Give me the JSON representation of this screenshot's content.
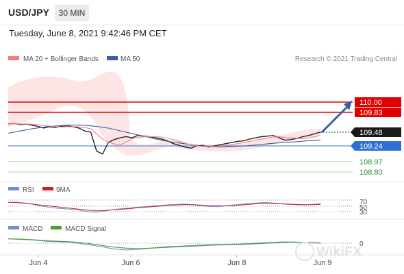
{
  "header": {
    "symbol": "USD/JPY",
    "timeframe_button": "30 MIN",
    "datetime": "Tuesday, June 8, 2021 9:42:46 PM CET"
  },
  "legend": {
    "ma20": "MA 20 + Bollinger Bands",
    "ma50": "MA 50",
    "copyright": "Research © 2021 Trading Central",
    "rsi": "RSI",
    "rsi_ma": "9MA",
    "macd": "MACD",
    "macd_signal": "MACD Signal"
  },
  "colors": {
    "ma20": "#f08080",
    "ma50": "#3a5fa0",
    "resistance": "#e00000",
    "support": "#5b8fd0",
    "support_green": "#7bc47b",
    "rsi": "#6a8fd8",
    "rsi_ma": "#cc2222",
    "macd": "#6a8fd8",
    "macd_signal": "#559933",
    "arrow": "#2f5fa8",
    "last_price_bg": "#1a1a1a"
  },
  "chart_data": [
    {
      "type": "line",
      "title": "USD/JPY 30 MIN",
      "x_labels": [
        "Jun 4",
        "Jun 6",
        "Jun 8",
        "Jun 9"
      ],
      "ylim": [
        108.75,
        110.1
      ],
      "series": [
        {
          "name": "price",
          "values": [
            109.62,
            109.63,
            109.61,
            109.62,
            109.6,
            109.58,
            109.55,
            109.57,
            109.56,
            109.58,
            109.59,
            109.57,
            109.55,
            109.5,
            109.48,
            109.15,
            109.1,
            109.3,
            109.35,
            109.38,
            109.4,
            109.38,
            109.42,
            109.41,
            109.4,
            109.38,
            109.36,
            109.33,
            109.28,
            109.25,
            109.22,
            109.2,
            109.24,
            109.25,
            109.22,
            109.24,
            109.26,
            109.28,
            109.3,
            109.32,
            109.33,
            109.36,
            109.38,
            109.4,
            109.41,
            109.42,
            109.38,
            109.34,
            109.35,
            109.37,
            109.4,
            109.42,
            109.45,
            109.48
          ]
        },
        {
          "name": "MA 50",
          "values": [
            109.46,
            109.5,
            109.54,
            109.57,
            109.59,
            109.6,
            109.6,
            109.58,
            109.55,
            109.5,
            109.45,
            109.4,
            109.35,
            109.31,
            109.28,
            109.25,
            109.23,
            109.22,
            109.23,
            109.24,
            109.26,
            109.28,
            109.3,
            109.31,
            109.33,
            109.34
          ]
        }
      ],
      "levels": [
        {
          "label": "110.00",
          "value": 110.0,
          "kind": "resistance"
        },
        {
          "label": "109.83",
          "value": 109.83,
          "kind": "resistance"
        },
        {
          "label": "109.48",
          "value": 109.48,
          "kind": "last"
        },
        {
          "label": "109.24",
          "value": 109.24,
          "kind": "support"
        },
        {
          "label": "108.97",
          "value": 108.97,
          "kind": "support2"
        },
        {
          "label": "108.80",
          "value": 108.8,
          "kind": "support2"
        }
      ]
    },
    {
      "type": "line",
      "title": "RSI",
      "levels": [
        "70",
        "50",
        "30"
      ],
      "series": [
        {
          "name": "RSI",
          "values": [
            62,
            63,
            60,
            56,
            50,
            46,
            42,
            40,
            38,
            35,
            30,
            28,
            32,
            36,
            40,
            42,
            45,
            47,
            49,
            51,
            54,
            55,
            56,
            54,
            50,
            48,
            47,
            49,
            53,
            55,
            58,
            60,
            62,
            60,
            57,
            55,
            54,
            53,
            55,
            57
          ]
        },
        {
          "name": "9MA",
          "values": [
            62,
            61,
            59,
            56,
            53,
            50,
            47,
            44,
            41,
            38,
            35,
            33,
            34,
            36,
            38,
            40,
            43,
            45,
            47,
            49,
            51,
            53,
            54,
            54,
            53,
            51,
            50,
            50,
            51,
            53,
            55,
            57,
            58,
            58,
            57,
            56,
            55,
            54,
            54,
            55
          ]
        }
      ]
    },
    {
      "type": "line",
      "title": "MACD",
      "levels": [
        "0"
      ],
      "series": [
        {
          "name": "MACD",
          "values": [
            0.07,
            0.06,
            0.05,
            0.03,
            0.02,
            0.01,
            -0.02,
            -0.05,
            -0.09,
            -0.11,
            -0.1,
            -0.08,
            -0.06,
            -0.05,
            -0.04,
            -0.03,
            -0.02,
            -0.02,
            -0.01,
            0.0,
            0.01,
            0.02,
            0.02,
            0.01,
            0.0
          ]
        },
        {
          "name": "MACD Signal",
          "values": [
            0.07,
            0.065,
            0.055,
            0.04,
            0.03,
            0.02,
            0.0,
            -0.03,
            -0.06,
            -0.08,
            -0.09,
            -0.08,
            -0.07,
            -0.06,
            -0.05,
            -0.04,
            -0.03,
            -0.025,
            -0.02,
            -0.01,
            0.0,
            0.01,
            0.015,
            0.01,
            0.005
          ]
        }
      ]
    }
  ],
  "watermark": "WikiFX"
}
